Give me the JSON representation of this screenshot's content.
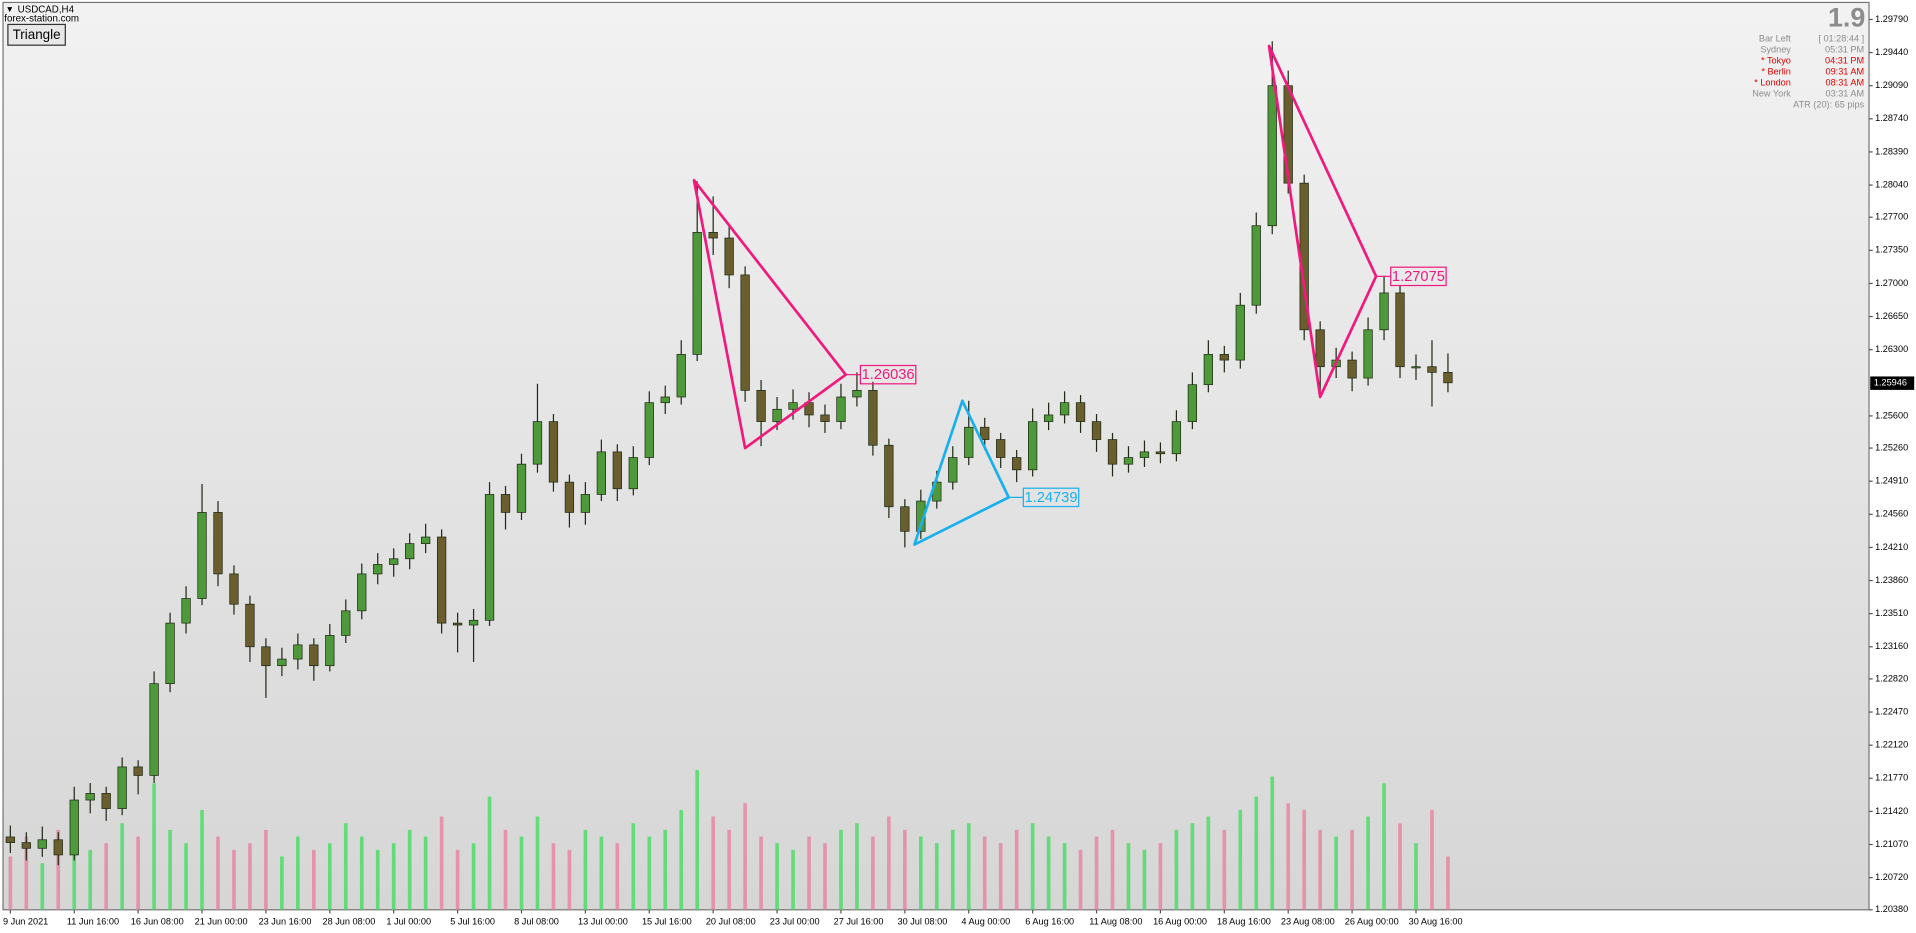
{
  "header": {
    "symbol": "USDCAD,H4",
    "site": "forex-station.com",
    "button": "Triangle"
  },
  "info_panel": {
    "spread": 1.9,
    "rows": [
      {
        "label": "Bar Left",
        "value": "[ 01:28:44 ]",
        "color": "#8c8c8c"
      },
      {
        "label": "Sydney",
        "value": "05:31 PM",
        "color": "#8c8c8c"
      },
      {
        "label": "* Tokyo",
        "value": "04:31 PM",
        "color": "#e00000"
      },
      {
        "label": "* Berlin",
        "value": "09:31 AM",
        "color": "#e00000"
      },
      {
        "label": "* London",
        "value": "08:31 AM",
        "color": "#e00000"
      },
      {
        "label": "New York",
        "value": "03:31 AM",
        "color": "#8c8c8c"
      }
    ],
    "atr": "ATR (20): 65 pips"
  },
  "chart_data": {
    "type": "candlestick",
    "categories": [
      "9 Jun 2021",
      null,
      null,
      null,
      "11 Jun 16:00",
      null,
      null,
      null,
      "16 Jun 08:00",
      null,
      null,
      null,
      "21 Jun 00:00",
      null,
      null,
      null,
      "23 Jun 16:00",
      null,
      null,
      null,
      "28 Jun 08:00",
      null,
      null,
      null,
      "1 Jul 00:00",
      null,
      null,
      null,
      "5 Jul 16:00",
      null,
      null,
      null,
      "8 Jul 08:00",
      null,
      null,
      null,
      "13 Jul 00:00",
      null,
      null,
      null,
      "15 Jul 16:00",
      null,
      null,
      null,
      "20 Jul 08:00",
      null,
      null,
      null,
      "23 Jul 00:00",
      null,
      null,
      null,
      "27 Jul 16:00",
      null,
      null,
      null,
      "30 Jul 08:00",
      null,
      null,
      null,
      "4 Aug 00:00",
      null,
      null,
      null,
      "6 Aug 16:00",
      null,
      null,
      null,
      "11 Aug 08:00",
      null,
      null,
      null,
      "16 Aug 00:00",
      null,
      null,
      null,
      "18 Aug 16:00",
      null,
      null,
      null,
      "23 Aug 08:00",
      null,
      null,
      null,
      "26 Aug 00:00",
      null,
      null,
      null,
      "30 Aug 16:00",
      null,
      null
    ],
    "open": [
      1.2115,
      1.2109,
      1.2103,
      1.2112,
      1.2096,
      1.2154,
      1.2161,
      1.2145,
      1.2189,
      1.218,
      1.2277,
      1.2341,
      1.2367,
      1.2458,
      1.2393,
      1.2361,
      1.2316,
      1.2296,
      1.2303,
      1.2318,
      1.2296,
      1.2328,
      1.2354,
      1.2393,
      1.2403,
      1.2409,
      1.2425,
      1.2432,
      1.2341,
      1.2339,
      1.2344,
      1.2477,
      1.2458,
      1.2509,
      1.2554,
      1.249,
      1.2458,
      1.2477,
      1.2522,
      1.2483,
      1.2516,
      1.2574,
      1.258,
      1.2625,
      1.2754,
      1.2748,
      1.2709,
      1.2587,
      1.2554,
      1.2567,
      1.2574,
      1.2561,
      1.2554,
      1.258,
      1.2587,
      1.2529,
      1.2464,
      1.2438,
      1.247,
      1.249,
      1.2516,
      1.2548,
      1.2535,
      1.2516,
      1.2503,
      1.2554,
      1.2561,
      1.2574,
      1.2554,
      1.2535,
      1.2509,
      1.2516,
      1.2522,
      1.252,
      1.2554,
      1.2593,
      1.2625,
      1.2619,
      1.2677,
      1.2761,
      1.2909,
      1.2806,
      1.2651,
      1.2612,
      1.2619,
      1.26,
      1.2651,
      1.269,
      1.2612,
      1.2612,
      1.2606
    ],
    "high": [
      1.2127,
      1.212,
      1.2126,
      1.212,
      1.2168,
      1.2172,
      1.2168,
      1.2199,
      1.2196,
      1.229,
      1.2352,
      1.238,
      1.2488,
      1.247,
      1.2402,
      1.237,
      1.2325,
      1.2315,
      1.233,
      1.2325,
      1.234,
      1.2366,
      1.2404,
      1.2415,
      1.242,
      1.2436,
      1.2446,
      1.244,
      1.2352,
      1.2356,
      1.249,
      1.2486,
      1.252,
      1.2594,
      1.2562,
      1.2498,
      1.249,
      1.2535,
      1.253,
      1.2528,
      1.2586,
      1.2592,
      1.264,
      1.2808,
      1.2792,
      1.276,
      1.2718,
      1.2598,
      1.258,
      1.2588,
      1.2585,
      1.2572,
      1.2594,
      1.2606,
      1.2596,
      1.2536,
      1.2472,
      1.2482,
      1.2502,
      1.2528,
      1.2576,
      1.2558,
      1.2542,
      1.2524,
      1.2568,
      1.2574,
      1.2586,
      1.2582,
      1.2562,
      1.2542,
      1.2528,
      1.2534,
      1.2532,
      1.2566,
      1.2606,
      1.264,
      1.2634,
      1.269,
      1.2775,
      1.2956,
      1.2925,
      1.2815,
      1.266,
      1.2632,
      1.2628,
      1.2664,
      1.2708,
      1.2698,
      1.2625,
      1.264,
      1.2626
    ],
    "low": [
      1.2098,
      1.209,
      1.2094,
      1.2085,
      1.209,
      1.214,
      1.2132,
      1.2138,
      1.216,
      1.2172,
      1.2268,
      1.233,
      1.236,
      1.238,
      1.235,
      1.23,
      1.2262,
      1.2285,
      1.2292,
      1.228,
      1.229,
      1.232,
      1.2345,
      1.2382,
      1.239,
      1.2398,
      1.2415,
      1.233,
      1.231,
      1.23,
      1.2338,
      1.244,
      1.245,
      1.25,
      1.248,
      1.2442,
      1.2445,
      1.247,
      1.247,
      1.2476,
      1.2508,
      1.2562,
      1.2572,
      1.2618,
      1.273,
      1.2695,
      1.2575,
      1.2528,
      1.2545,
      1.2556,
      1.2548,
      1.2542,
      1.2546,
      1.257,
      1.2518,
      1.2452,
      1.2421,
      1.243,
      1.2462,
      1.2482,
      1.2508,
      1.2524,
      1.2505,
      1.249,
      1.2496,
      1.2545,
      1.2552,
      1.2542,
      1.2522,
      1.2496,
      1.25,
      1.2506,
      1.251,
      1.2512,
      1.2546,
      1.2585,
      1.2606,
      1.261,
      1.2668,
      1.2752,
      1.2795,
      1.264,
      1.258,
      1.26,
      1.2586,
      1.2592,
      1.264,
      1.26,
      1.2598,
      1.257,
      1.2585
    ],
    "close": [
      1.2109,
      1.2103,
      1.2112,
      1.2096,
      1.2154,
      1.2161,
      1.2145,
      1.2189,
      1.218,
      1.2277,
      1.2341,
      1.2367,
      1.2458,
      1.2393,
      1.2361,
      1.2316,
      1.2296,
      1.2303,
      1.2318,
      1.2296,
      1.2328,
      1.2354,
      1.2393,
      1.2403,
      1.2409,
      1.2425,
      1.2432,
      1.2341,
      1.2339,
      1.2344,
      1.2477,
      1.2458,
      1.2509,
      1.2554,
      1.249,
      1.2458,
      1.2477,
      1.2522,
      1.2483,
      1.2516,
      1.2574,
      1.258,
      1.2625,
      1.2754,
      1.2748,
      1.2709,
      1.2587,
      1.2554,
      1.2567,
      1.2574,
      1.2561,
      1.2554,
      1.258,
      1.2587,
      1.2529,
      1.2464,
      1.2438,
      1.247,
      1.249,
      1.2516,
      1.2548,
      1.2535,
      1.2516,
      1.2503,
      1.2554,
      1.2561,
      1.2574,
      1.2554,
      1.2535,
      1.2509,
      1.2516,
      1.2522,
      1.252,
      1.2554,
      1.2593,
      1.2625,
      1.2619,
      1.2677,
      1.2761,
      1.2909,
      1.2806,
      1.2651,
      1.2612,
      1.2619,
      1.26,
      1.2651,
      1.269,
      1.2612,
      1.2612,
      1.2606,
      1.2595
    ],
    "volume": [
      40,
      55,
      35,
      60,
      70,
      45,
      50,
      65,
      55,
      95,
      60,
      50,
      75,
      55,
      45,
      50,
      60,
      40,
      55,
      45,
      50,
      65,
      55,
      45,
      50,
      60,
      55,
      70,
      45,
      50,
      85,
      60,
      55,
      70,
      50,
      45,
      60,
      55,
      50,
      65,
      55,
      60,
      75,
      105,
      70,
      60,
      80,
      55,
      50,
      45,
      55,
      50,
      60,
      65,
      55,
      70,
      60,
      55,
      50,
      60,
      65,
      55,
      50,
      60,
      65,
      55,
      50,
      45,
      55,
      60,
      50,
      45,
      50,
      60,
      65,
      70,
      60,
      75,
      85,
      100,
      80,
      75,
      60,
      55,
      60,
      70,
      95,
      65,
      50,
      75,
      40
    ],
    "volume_ylim": [
      0,
      110
    ],
    "ylim": [
      1.2038,
      1.2997
    ],
    "yticks": [
      {
        "value": 1.2979,
        "label": "1.29790"
      },
      {
        "value": 1.2944,
        "label": "1.29440"
      },
      {
        "value": 1.2909,
        "label": "1.29090"
      },
      {
        "value": 1.2874,
        "label": "1.28740"
      },
      {
        "value": 1.2839,
        "label": "1.28390"
      },
      {
        "value": 1.2804,
        "label": "1.28040"
      },
      {
        "value": 1.277,
        "label": "1.27700"
      },
      {
        "value": 1.2735,
        "label": "1.27350"
      },
      {
        "value": 1.27,
        "label": "1.27000"
      },
      {
        "value": 1.2665,
        "label": "1.26650"
      },
      {
        "value": 1.263,
        "label": "1.26300"
      },
      {
        "value": 1.256,
        "label": "1.25600"
      },
      {
        "value": 1.2526,
        "label": "1.25260"
      },
      {
        "value": 1.2491,
        "label": "1.24910"
      },
      {
        "value": 1.2456,
        "label": "1.24560"
      },
      {
        "value": 1.2421,
        "label": "1.24210"
      },
      {
        "value": 1.2386,
        "label": "1.23860"
      },
      {
        "value": 1.2351,
        "label": "1.23510"
      },
      {
        "value": 1.2316,
        "label": "1.23160"
      },
      {
        "value": 1.2282,
        "label": "1.22820"
      },
      {
        "value": 1.2247,
        "label": "1.22470"
      },
      {
        "value": 1.2212,
        "label": "1.22120"
      },
      {
        "value": 1.2177,
        "label": "1.21770"
      },
      {
        "value": 1.2142,
        "label": "1.21420"
      },
      {
        "value": 1.2107,
        "label": "1.21070"
      },
      {
        "value": 1.2072,
        "label": "1.20720"
      },
      {
        "value": 1.2038,
        "label": "1.20380"
      }
    ],
    "current_price": 1.25946,
    "colors": {
      "bull": "#4e9a3a",
      "bear": "#6b5e2e",
      "wick": "#1f2a14",
      "volume_up": "#3ddc5a",
      "volume_down": "#e87d9a"
    },
    "triangles": [
      {
        "color": "#f0197d",
        "points": [
          [
            42.8,
            1.2809
          ],
          [
            46,
            1.2526
          ],
          [
            52.3,
            1.26036
          ]
        ]
      },
      {
        "color": "#1ab0ec",
        "points": [
          [
            56.6,
            1.2424
          ],
          [
            59.6,
            1.2576
          ],
          [
            62.5,
            1.24739
          ]
        ]
      },
      {
        "color": "#f0197d",
        "points": [
          [
            78.8,
            1.2951
          ],
          [
            82,
            1.258
          ],
          [
            85.5,
            1.27075
          ]
        ]
      }
    ]
  }
}
